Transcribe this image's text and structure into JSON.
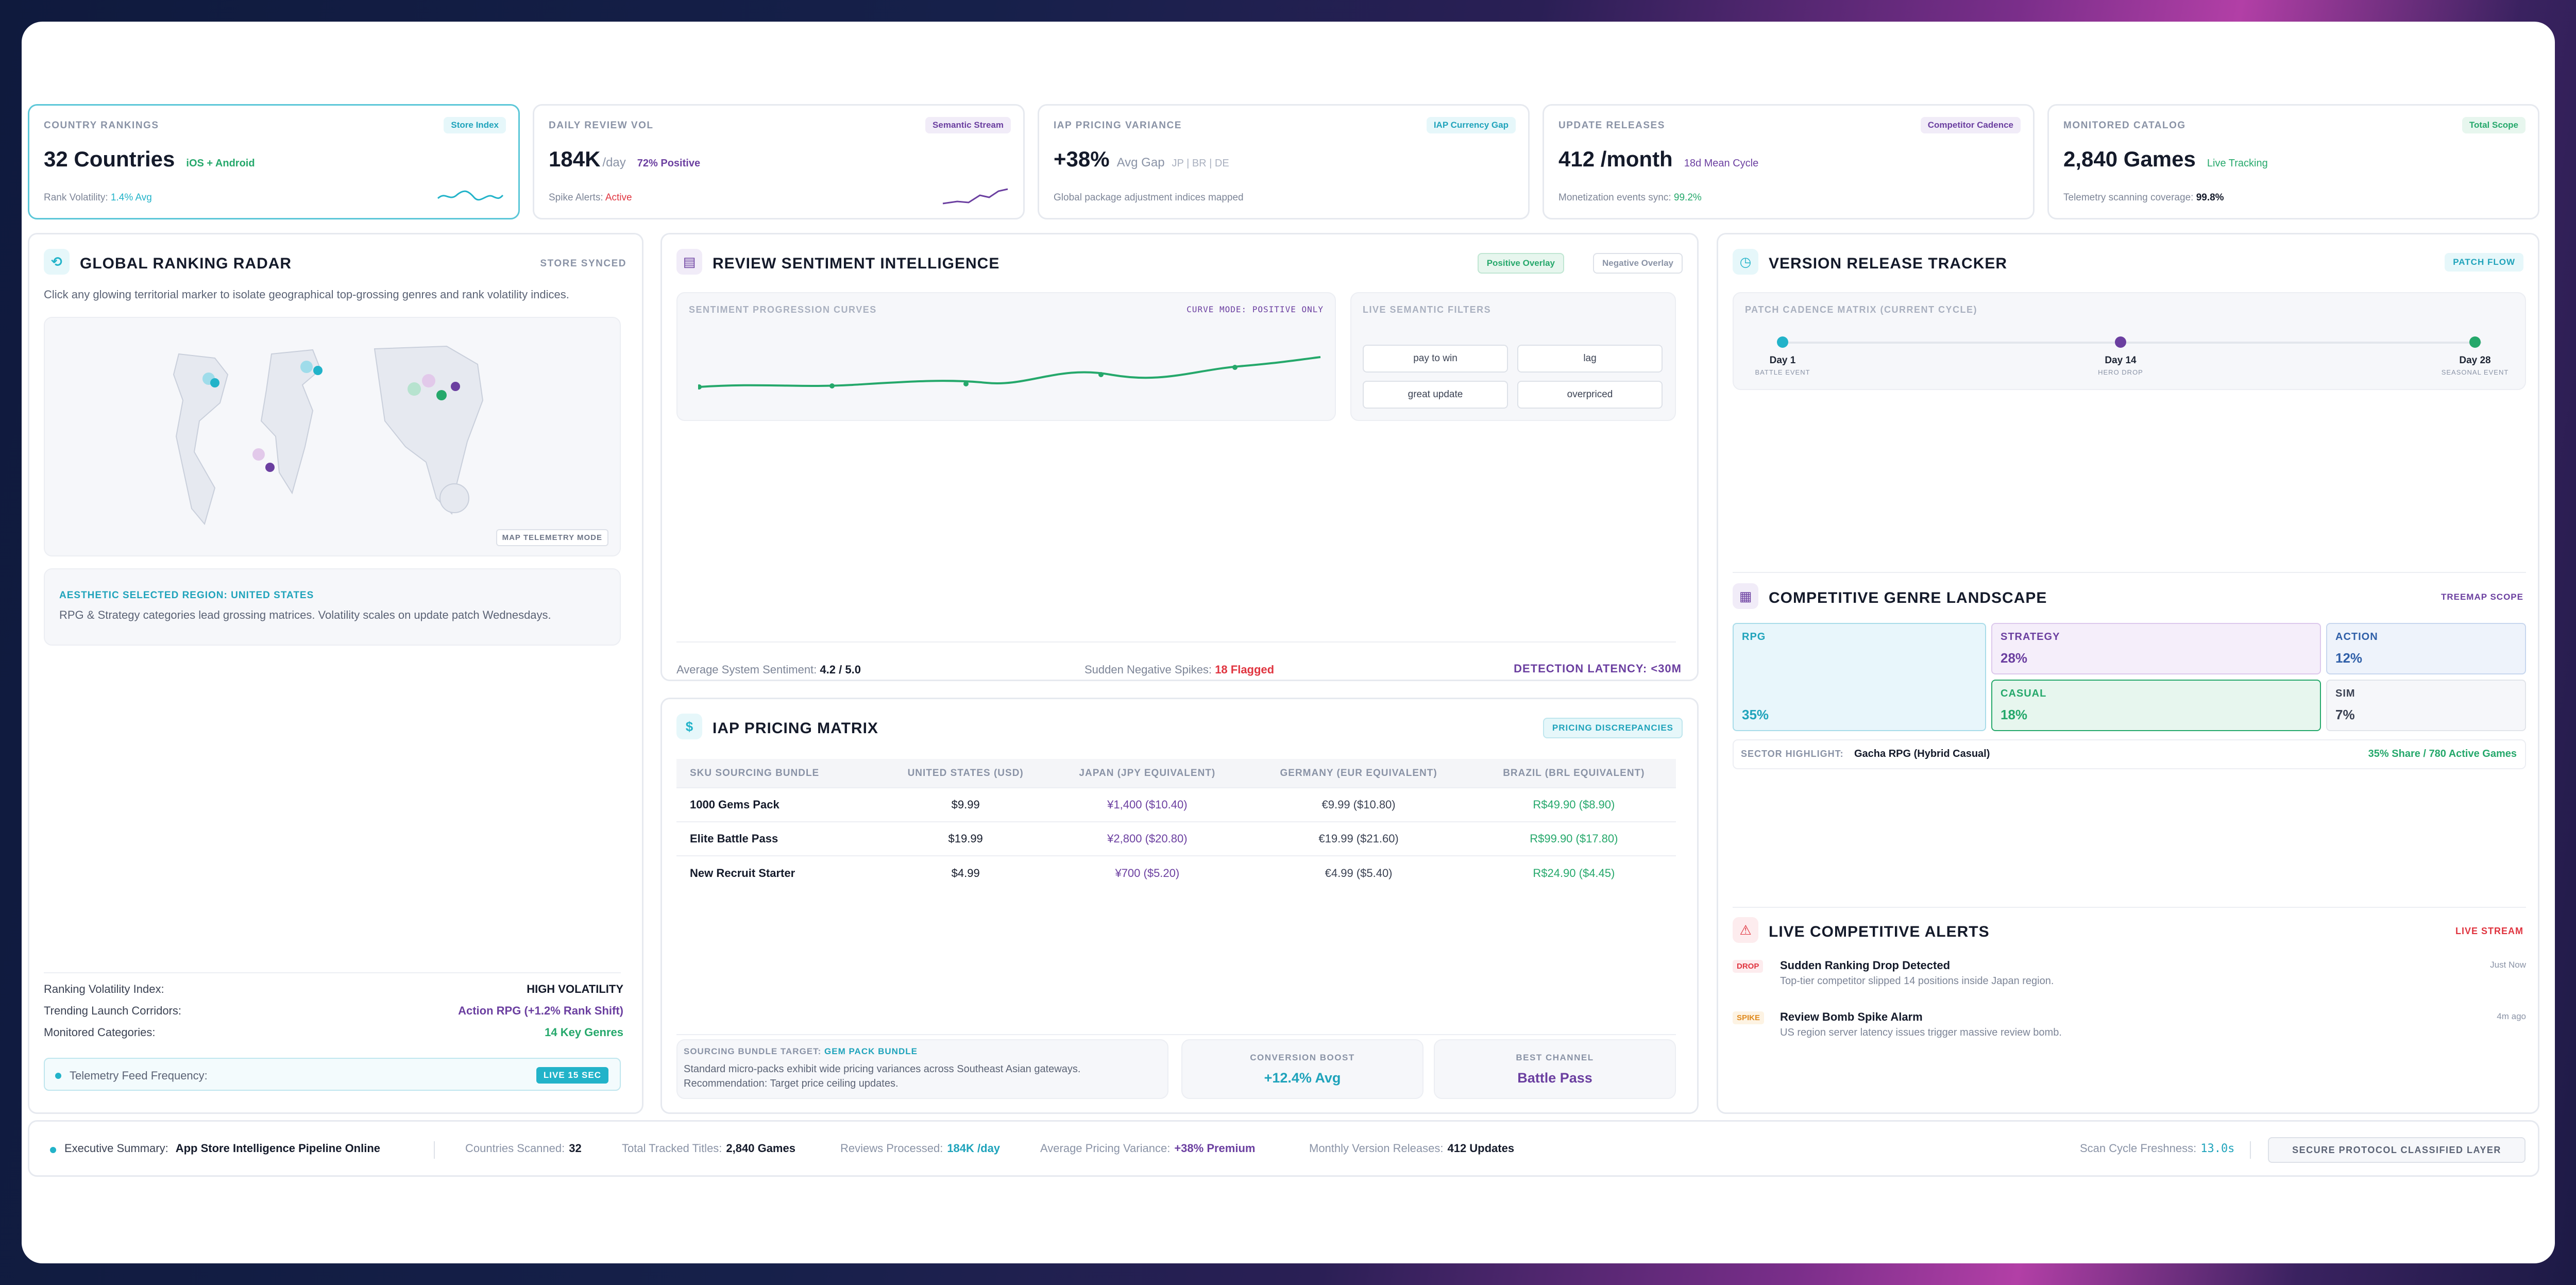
{
  "kpis": [
    {
      "title": "COUNTRY RANKINGS",
      "badge": "Store Index",
      "value": "32 Countries",
      "unit": "",
      "sub": "iOS + Android",
      "foot_label": "Rank Volatility:",
      "foot_value": "1.4% Avg"
    },
    {
      "title": "DAILY REVIEW VOL",
      "badge": "Semantic Stream",
      "value": "184K",
      "unit": "/day",
      "sub": "72% Positive",
      "foot_label": "Spike Alerts:",
      "foot_value": "Active"
    },
    {
      "title": "IAP PRICING VARIANCE",
      "badge": "IAP Currency Gap",
      "value": "+38%",
      "unit": "Avg Gap",
      "sub": "JP | BR | DE",
      "foot_label": "Global package adjustment indices mapped",
      "foot_value": ""
    },
    {
      "title": "UPDATE RELEASES",
      "badge": "Competitor Cadence",
      "value": "412 /month",
      "unit": "",
      "sub": "18d Mean Cycle",
      "foot_label": "Monetization events sync:",
      "foot_value": "99.2%"
    },
    {
      "title": "MONITORED CATALOG",
      "badge": "Total Scope",
      "value": "2,840 Games",
      "unit": "",
      "sub": "Live Tracking",
      "foot_label": "Telemetry scanning coverage:",
      "foot_value": "99.8%"
    }
  ],
  "radar": {
    "title": "GLOBAL RANKING RADAR",
    "tag": "STORE SYNCED",
    "desc": "Click any glowing territorial marker to isolate geographical top-grossing genres and rank volatility indices.",
    "map_badge": "MAP TELEMETRY MODE",
    "region_label": "AESTHETIC SELECTED REGION:",
    "region_name": "UNITED STATES",
    "region_desc": "RPG & Strategy categories lead grossing matrices. Volatility scales on update patch Wednesdays.",
    "stats": [
      {
        "label": "Ranking Volatility Index:",
        "value": "HIGH VOLATILITY"
      },
      {
        "label": "Trending Launch Corridors:",
        "value": "Action RPG (+1.2% Rank Shift)"
      },
      {
        "label": "Monitored Categories:",
        "value": "14 Key Genres"
      }
    ],
    "feed_label": "Telemetry Feed Frequency:",
    "feed_badge": "LIVE 15 SEC"
  },
  "sentiment": {
    "title": "REVIEW SENTIMENT INTELLIGENCE",
    "btn_positive": "Positive Overlay",
    "btn_negative": "Negative Overlay",
    "chart_title": "SENTIMENT PROGRESSION CURVES",
    "curve_mode": "CURVE MODE: POSITIVE ONLY",
    "filters_title": "LIVE SEMANTIC FILTERS",
    "filters": [
      "pay to win",
      "lag",
      "great update",
      "overpriced"
    ],
    "avg_label": "Average System Sentiment:",
    "avg_value": "4.2 / 5.0",
    "spikes_label": "Sudden Negative Spikes:",
    "spikes_value": "18 Flagged",
    "latency": "DETECTION LATENCY: <30M"
  },
  "iap": {
    "title": "IAP PRICING MATRIX",
    "tag": "PRICING DISCREPANCIES",
    "columns": [
      "SKU SOURCING BUNDLE",
      "UNITED STATES (USD)",
      "JAPAN (JPY EQUIVALENT)",
      "GERMANY (EUR EQUIVALENT)",
      "BRAZIL (BRL EQUIVALENT)"
    ],
    "rows": [
      [
        "1000 Gems Pack",
        "$9.99",
        "¥1,400 ($10.40)",
        "€9.99 ($10.80)",
        "R$49.90 ($8.90)"
      ],
      [
        "Elite Battle Pass",
        "$19.99",
        "¥2,800 ($20.80)",
        "€19.99 ($21.60)",
        "R$99.90 ($17.80)"
      ],
      [
        "New Recruit Starter",
        "$4.99",
        "¥700 ($5.20)",
        "€4.99 ($5.40)",
        "R$24.90 ($4.45)"
      ]
    ],
    "target_label": "SOURCING BUNDLE TARGET:",
    "target_value": "GEM PACK BUNDLE",
    "target_desc": "Standard micro-packs exhibit wide pricing variances across Southeast Asian gateways. Recommendation: Target price ceiling updates.",
    "boost_label": "CONVERSION BOOST",
    "boost_value": "+12.4% Avg",
    "channel_label": "BEST CHANNEL",
    "channel_value": "Battle Pass"
  },
  "version": {
    "title": "VERSION RELEASE TRACKER",
    "tag": "PATCH FLOW",
    "matrix_title": "PATCH CADENCE MATRIX (CURRENT CYCLE)",
    "events": [
      {
        "day": "Day 1",
        "label": "BATTLE EVENT"
      },
      {
        "day": "Day 14",
        "label": "HERO DROP"
      },
      {
        "day": "Day 28",
        "label": "SEASONAL EVENT"
      }
    ]
  },
  "genre": {
    "title": "COMPETITIVE GENRE LANDSCAPE",
    "tag": "TREEMAP SCOPE",
    "cells": [
      {
        "name": "RPG",
        "value": "35%"
      },
      {
        "name": "STRATEGY",
        "value": "28%"
      },
      {
        "name": "ACTION",
        "value": "12%"
      },
      {
        "name": "CASUAL",
        "value": "18%"
      },
      {
        "name": "SIM",
        "value": "7%"
      }
    ],
    "highlight_label": "SECTOR HIGHLIGHT:",
    "highlight_value": "Gacha RPG (Hybrid Casual)",
    "highlight_stat": "35% Share / 780 Active Games"
  },
  "alerts": {
    "title": "LIVE COMPETITIVE ALERTS",
    "tag": "LIVE STREAM",
    "items": [
      {
        "badge": "DROP",
        "title": "Sudden Ranking Drop Detected",
        "desc": "Top-tier competitor slipped 14 positions inside Japan region.",
        "time": "Just Now"
      },
      {
        "badge": "SPIKE",
        "title": "Review Bomb Spike Alarm",
        "desc": "US region server latency issues trigger massive review bomb.",
        "time": "4m ago"
      }
    ]
  },
  "footer": {
    "summary_label": "Executive Summary:",
    "summary_value": "App Store Intelligence Pipeline Online",
    "countries_label": "Countries Scanned:",
    "countries_value": "32",
    "titles_label": "Total Tracked Titles:",
    "titles_value": "2,840 Games",
    "reviews_label": "Reviews Processed:",
    "reviews_value": "184K /day",
    "pricing_label": "Average Pricing Variance:",
    "pricing_value": "+38% Premium",
    "releases_label": "Monthly Version Releases:",
    "releases_value": "412 Updates",
    "fresh_label": "Scan Cycle Freshness:",
    "fresh_value": "13.0s",
    "protocol_btn": "SECURE PROTOCOL CLASSIFIED LAYER"
  },
  "colors": {
    "teal": "#22b3c9",
    "purple": "#6b3fa0",
    "green": "#25a86b",
    "red": "#e0343f",
    "orange": "#e08a1e"
  }
}
